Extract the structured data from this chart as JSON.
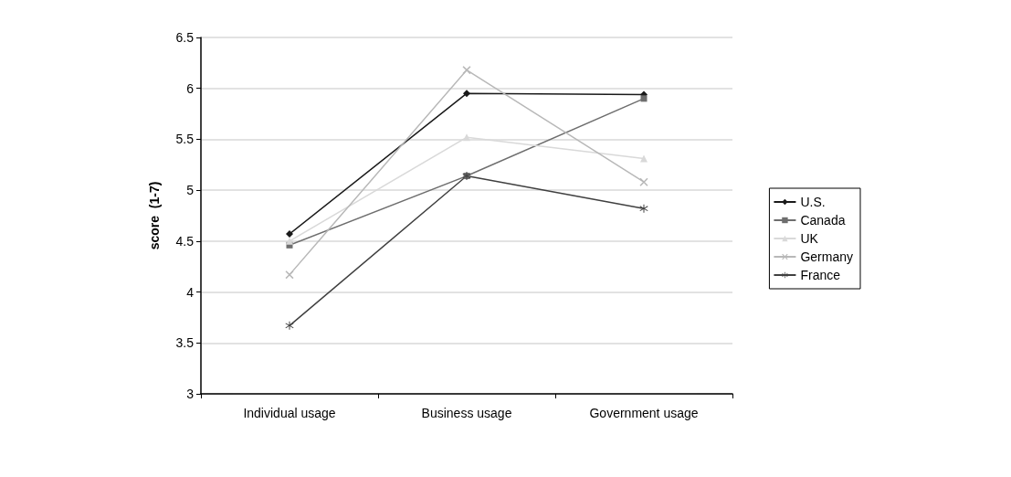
{
  "chart_data": {
    "type": "line",
    "ylabel": "score  (1-7)",
    "categories": [
      "Individual usage",
      "Business usage",
      "Government usage"
    ],
    "series": [
      {
        "name": "U.S.",
        "color": "#1a1a1a",
        "marker": "diamond",
        "values": [
          4.57,
          5.95,
          5.94
        ]
      },
      {
        "name": "Canada",
        "color": "#6e6e6e",
        "marker": "square",
        "values": [
          4.46,
          5.14,
          5.9
        ]
      },
      {
        "name": "UK",
        "color": "#d9d9d9",
        "marker": "triangle",
        "values": [
          4.5,
          5.52,
          5.31
        ]
      },
      {
        "name": "Germany",
        "color": "#b8b8b8",
        "marker": "cross",
        "values": [
          4.17,
          6.18,
          5.08
        ]
      },
      {
        "name": "France",
        "color": "#404040",
        "marker": "star",
        "values": [
          3.67,
          5.14,
          4.82
        ]
      }
    ],
    "ylim": [
      3,
      6.5
    ],
    "yticks": [
      3,
      3.5,
      4,
      4.5,
      5,
      5.5,
      6,
      6.5
    ],
    "grid": "y",
    "legend": "right"
  }
}
